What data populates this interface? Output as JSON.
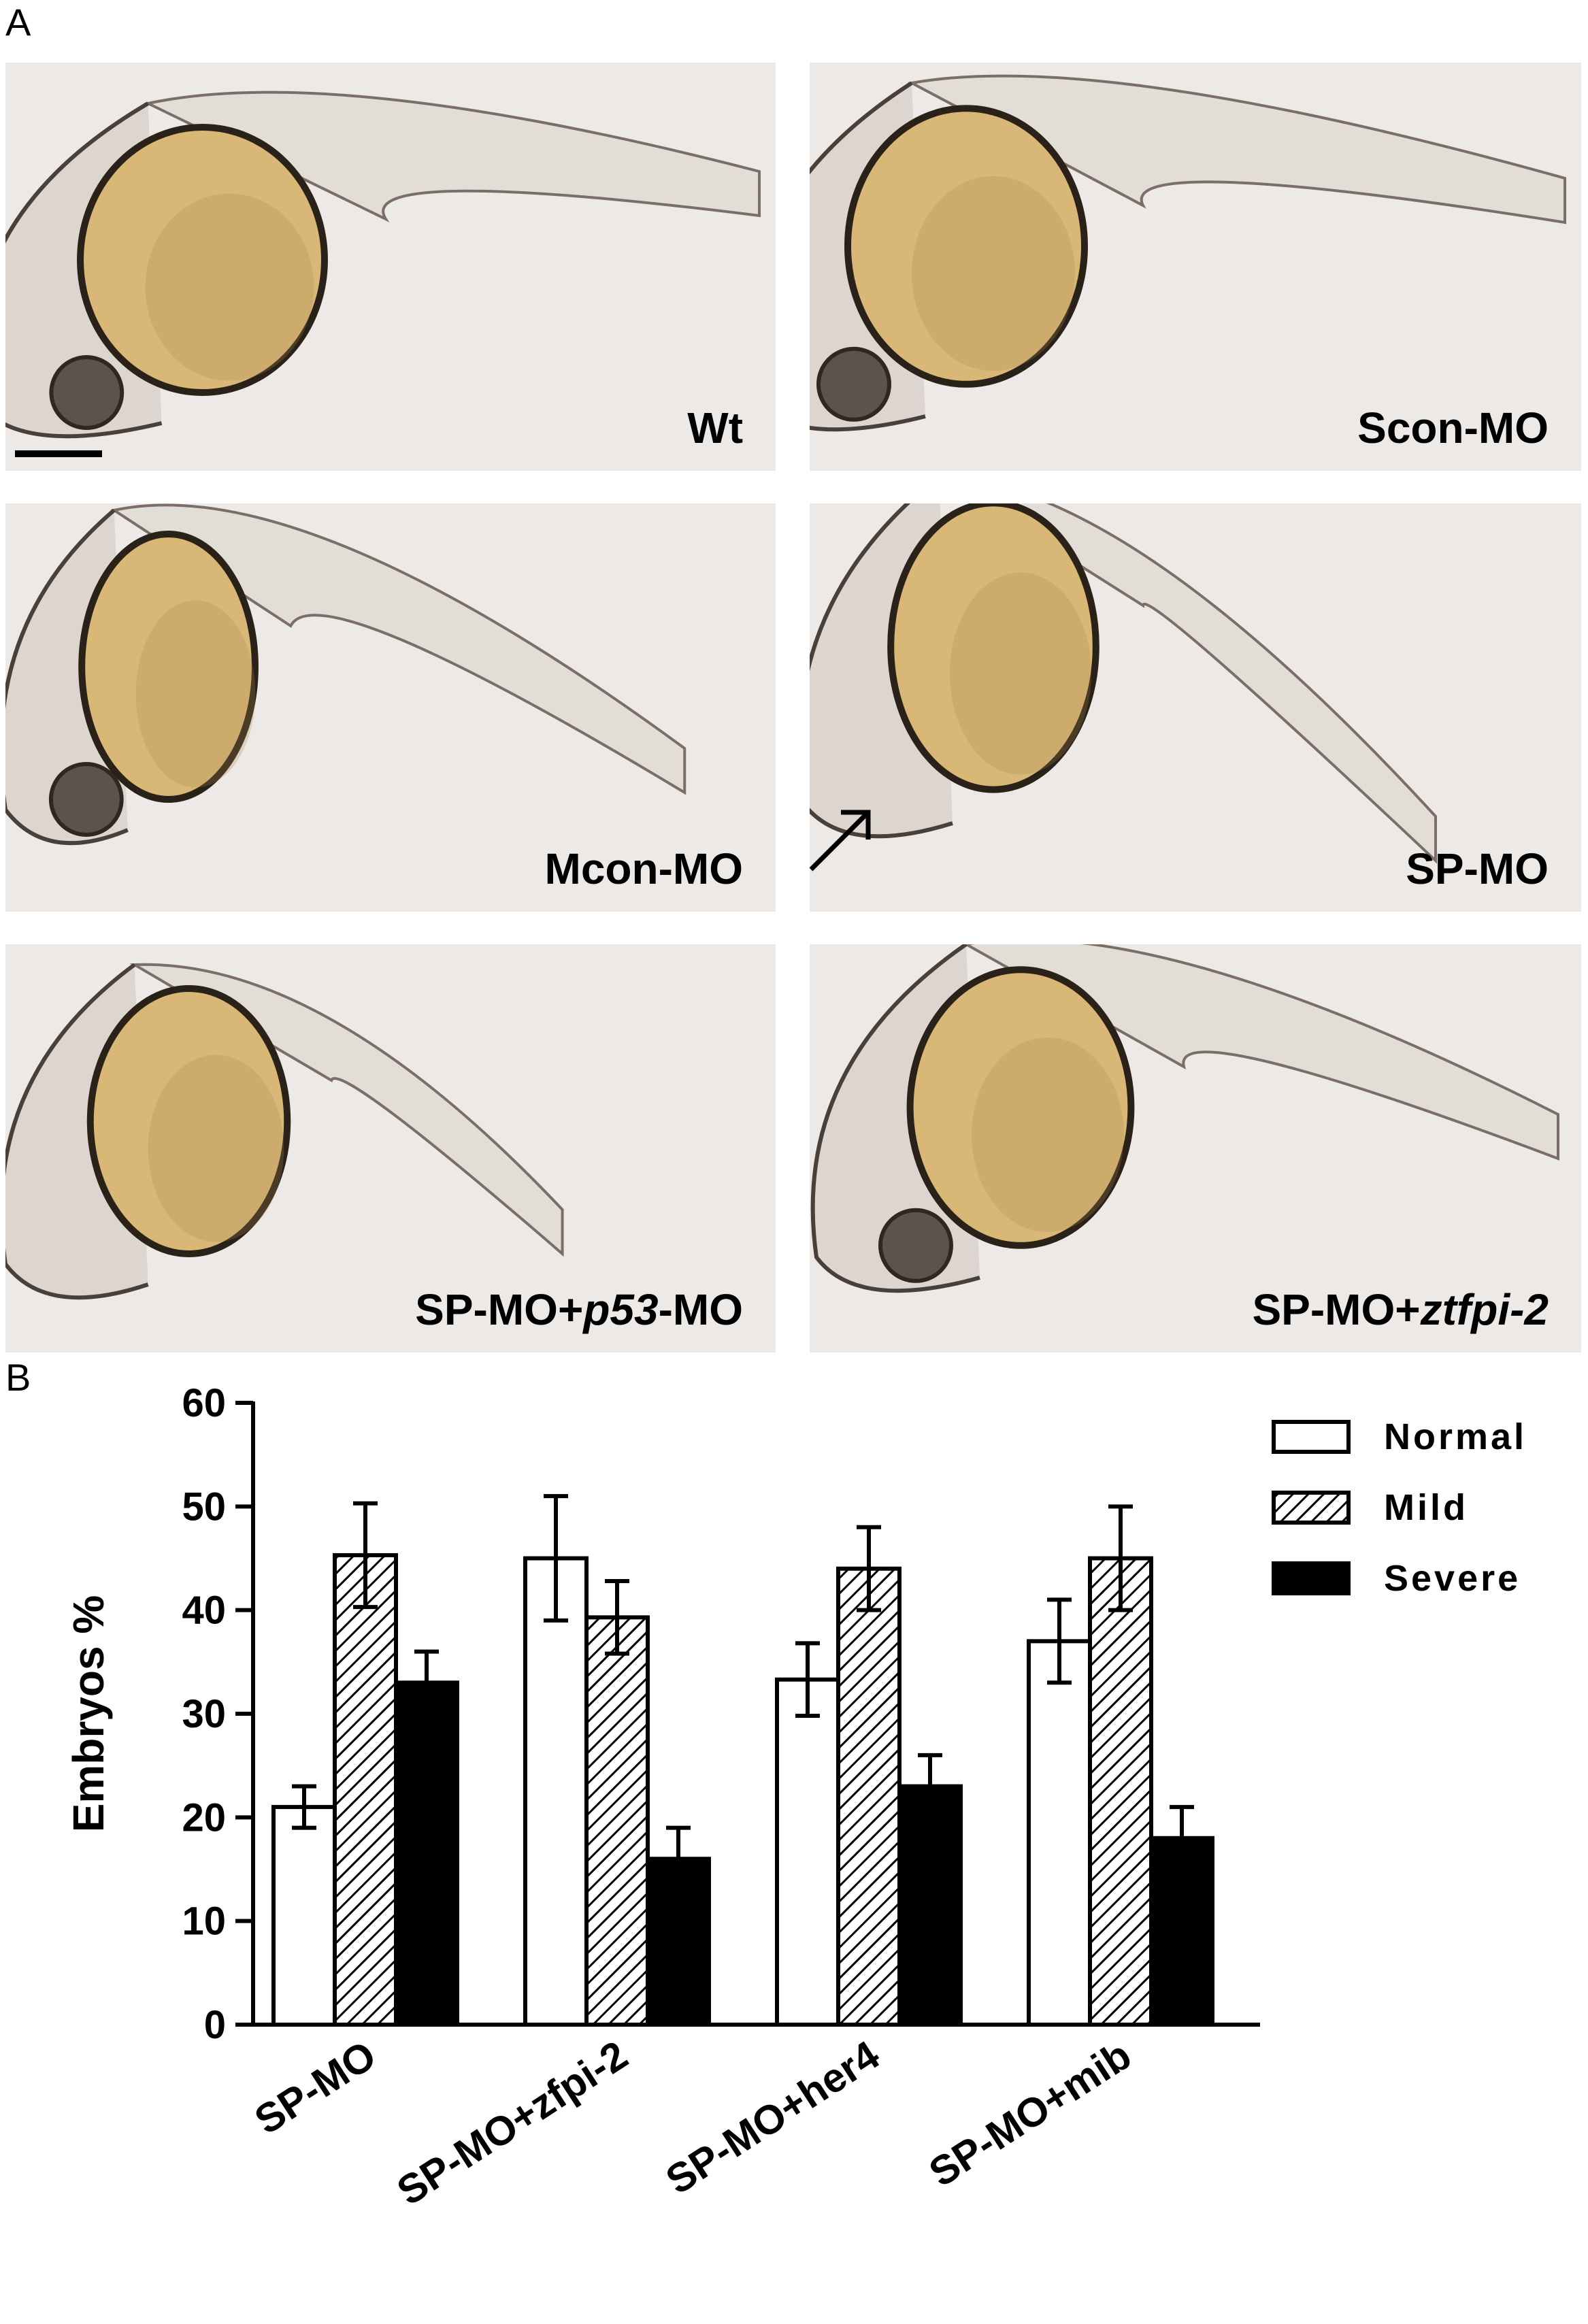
{
  "panel_a": {
    "letter": "A",
    "embryos": [
      {
        "label": "Wt",
        "italic": ""
      },
      {
        "label": "Scon-MO",
        "italic": ""
      },
      {
        "label": "Mcon-MO",
        "italic": ""
      },
      {
        "label": "SP-MO",
        "italic": ""
      },
      {
        "label_pre": "SP-MO+",
        "italic": "p53",
        "label_post": "-MO"
      },
      {
        "label_pre": "SP-MO+",
        "italic": "ztfpi-2",
        "label_post": ""
      }
    ]
  },
  "panel_b": {
    "letter": "B"
  },
  "colors": {
    "yolk": "#d9b777",
    "yolk_dark": "#a8864c",
    "background": "#ede9e6",
    "bar_severe": "#000000",
    "bar_normal": "#ffffff"
  },
  "chart_data": {
    "type": "bar",
    "categories": [
      "SP-MO",
      "SP-MO+zfpi-2",
      "SP-MO+her4",
      "SP-MO+mib"
    ],
    "series": [
      {
        "name": "Normal",
        "fill": "white",
        "values": [
          21,
          45,
          33.3,
          37
        ],
        "errors": [
          2,
          6,
          3.5,
          4
        ]
      },
      {
        "name": "Mild",
        "fill": "hatch",
        "values": [
          45.3,
          39.3,
          44,
          45
        ],
        "errors": [
          5,
          3.5,
          4,
          5
        ]
      },
      {
        "name": "Severe",
        "fill": "black",
        "values": [
          33,
          16,
          23,
          18
        ],
        "errors": [
          3,
          3,
          3,
          3
        ]
      }
    ],
    "ylabel": "Embryos %",
    "ylim": [
      0,
      60
    ],
    "yticks": [
      "0",
      "10",
      "20",
      "30",
      "40",
      "50",
      "60"
    ],
    "legend_position": "top-right",
    "grid": false
  }
}
